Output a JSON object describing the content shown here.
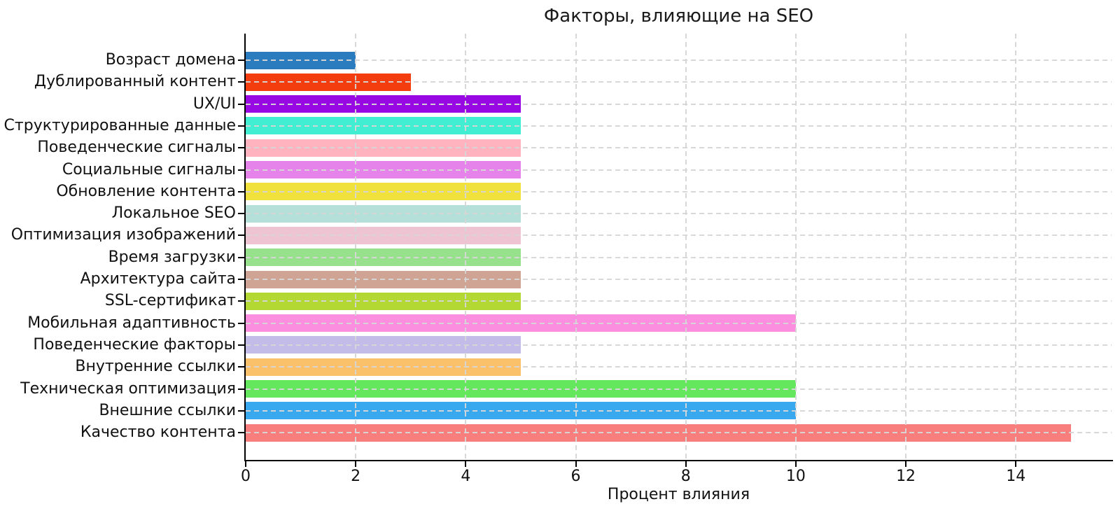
{
  "chart_data": {
    "type": "bar",
    "orientation": "horizontal",
    "title": "Факторы, влияющие на SEO",
    "xlabel": "Процент влияния",
    "ylabel": "",
    "categories": [
      "Возраст домена",
      "Дублированный контент",
      "UX/UI",
      "Структурированные данные",
      "Поведенческие сигналы",
      "Социальные сигналы",
      "Обновление контента",
      "Локальное SEO",
      "Оптимизация изображений",
      "Время загрузки",
      "Архитектура сайта",
      "SSL-сертификат",
      "Мобильная адаптивность",
      "Поведенческие факторы",
      "Внутренние ссылки",
      "Техническая оптимизация",
      "Внешние ссылки",
      "Качество контента"
    ],
    "values": [
      2,
      3,
      5,
      5,
      5,
      5,
      5,
      5,
      5,
      5,
      5,
      5,
      10,
      5,
      5,
      10,
      10,
      15
    ],
    "colors": [
      "#2A7CBE",
      "#F43D0E",
      "#9708E3",
      "#41EED1",
      "#FFB3BE",
      "#E583EA",
      "#F0E13C",
      "#B5DFD9",
      "#EFC4D2",
      "#97E18C",
      "#CFA494",
      "#B4D833",
      "#FC8EE0",
      "#C3BCE8",
      "#FBC06A",
      "#65E75D",
      "#38A9EE",
      "#F87E7D"
    ],
    "xticks": [
      0,
      2,
      4,
      6,
      8,
      10,
      12,
      14
    ],
    "xlim": [
      0,
      15.74
    ],
    "grid": "dashed both axes, drawn over bars",
    "legend": "none",
    "axis_color": "#000000",
    "grid_color": "#d6d6d6"
  }
}
